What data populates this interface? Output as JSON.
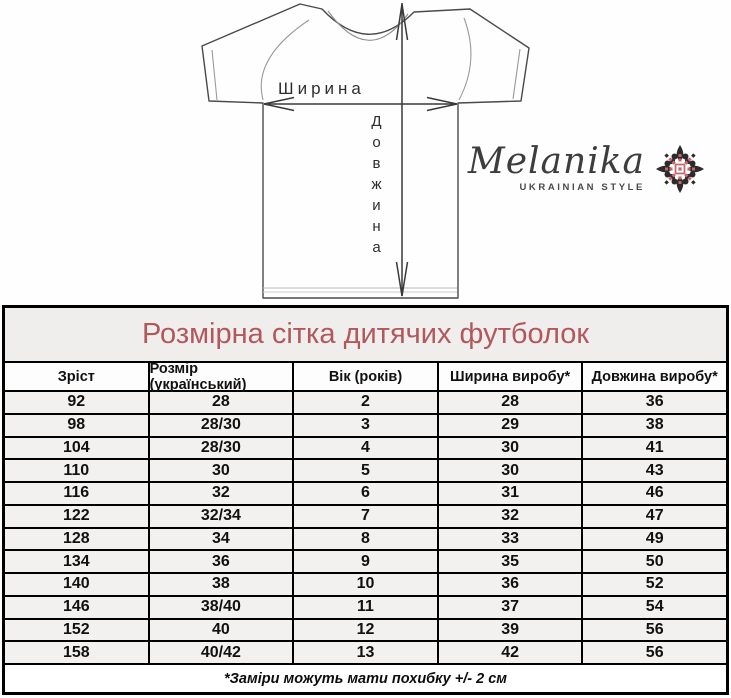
{
  "diagram": {
    "width_label": "Ширина",
    "length_label": "Довжина"
  },
  "logo": {
    "brand": "Melanika",
    "tagline": "UKRAINIAN STYLE"
  },
  "colors": {
    "title_text": "#b1585d",
    "table_row_bg": "#f2f1ef",
    "table_border": "#000000",
    "ornament_black": "#2b2b2b",
    "ornament_red": "#c4666b"
  },
  "chart_data": {
    "type": "table",
    "title": "Розмірна сітка дитячих футболок",
    "columns": [
      "Зріст",
      "Розмір (український)",
      "Вік (років)",
      "Ширина виробу*",
      "Довжина виробу*"
    ],
    "rows": [
      [
        92,
        "28",
        2,
        28,
        36
      ],
      [
        98,
        "28/30",
        3,
        29,
        38
      ],
      [
        104,
        "28/30",
        4,
        30,
        41
      ],
      [
        110,
        "30",
        5,
        30,
        43
      ],
      [
        116,
        "32",
        6,
        31,
        46
      ],
      [
        122,
        "32/34",
        7,
        32,
        47
      ],
      [
        128,
        "34",
        8,
        33,
        49
      ],
      [
        134,
        "36",
        9,
        35,
        50
      ],
      [
        140,
        "38",
        10,
        36,
        52
      ],
      [
        146,
        "38/40",
        11,
        37,
        54
      ],
      [
        152,
        "40",
        12,
        39,
        56
      ],
      [
        158,
        "40/42",
        13,
        42,
        56
      ]
    ],
    "footnote": "*Заміри можуть мати похибку +/- 2 см"
  }
}
